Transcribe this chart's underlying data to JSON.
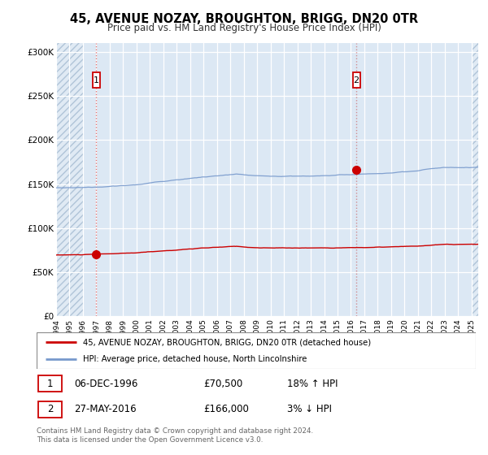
{
  "title": "45, AVENUE NOZAY, BROUGHTON, BRIGG, DN20 0TR",
  "subtitle": "Price paid vs. HM Land Registry's House Price Index (HPI)",
  "ylim": [
    0,
    310000
  ],
  "yticks": [
    0,
    50000,
    100000,
    150000,
    200000,
    250000,
    300000
  ],
  "ytick_labels": [
    "£0",
    "£50K",
    "£100K",
    "£150K",
    "£200K",
    "£250K",
    "£300K"
  ],
  "red_line_color": "#cc0000",
  "blue_line_color": "#7799cc",
  "hatch_color": "#c8d8e8",
  "bg_color": "#dce8f4",
  "annotation1": {
    "label": "1",
    "x_year": 1997.0,
    "y": 70500,
    "date": "06-DEC-1996",
    "price": "£70,500",
    "hpi_text": "18% ↑ HPI"
  },
  "annotation2": {
    "label": "2",
    "x_year": 2016.4,
    "y": 166000,
    "date": "27-MAY-2016",
    "price": "£166,000",
    "hpi_text": "3% ↓ HPI"
  },
  "legend_red": "45, AVENUE NOZAY, BROUGHTON, BRIGG, DN20 0TR (detached house)",
  "legend_blue": "HPI: Average price, detached house, North Lincolnshire",
  "footer": "Contains HM Land Registry data © Crown copyright and database right 2024.\nThis data is licensed under the Open Government Licence v3.0.",
  "hatch_end": 1996.0,
  "hatch_start": 2025.0,
  "xlim": [
    1994.0,
    2025.5
  ],
  "xticks": [
    1994,
    1995,
    1996,
    1997,
    1998,
    1999,
    2000,
    2001,
    2002,
    2003,
    2004,
    2005,
    2006,
    2007,
    2008,
    2009,
    2010,
    2011,
    2012,
    2013,
    2014,
    2015,
    2016,
    2017,
    2018,
    2019,
    2020,
    2021,
    2022,
    2023,
    2024,
    2025
  ]
}
